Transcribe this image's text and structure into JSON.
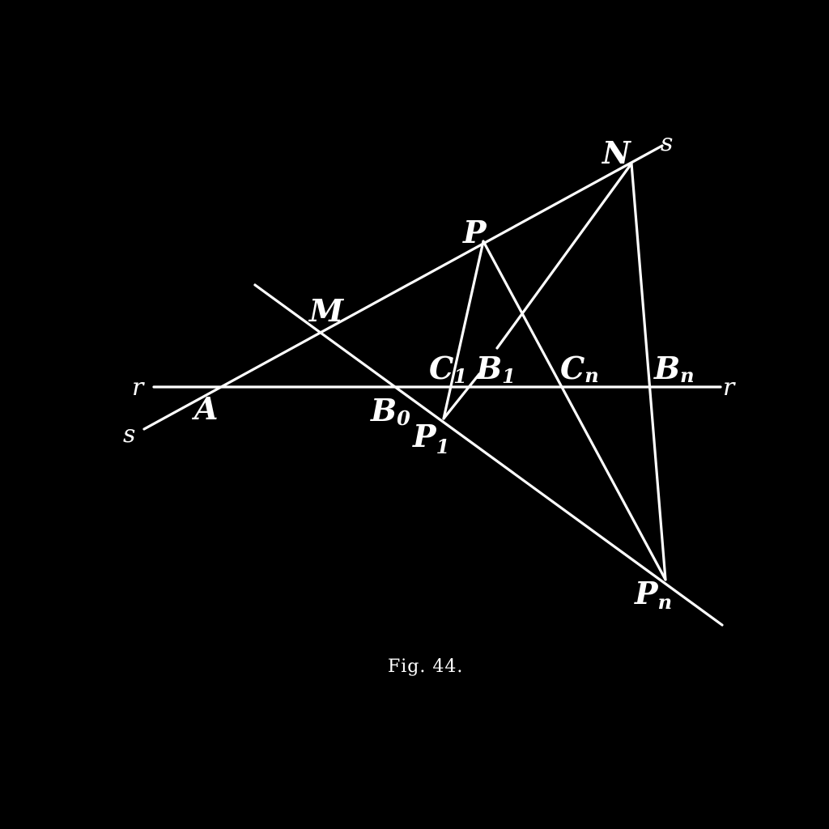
{
  "figure": {
    "caption": "Fig. 44.",
    "lines": {
      "r": "r",
      "s": "s"
    },
    "points": {
      "A": {
        "main": "A",
        "sub": ""
      },
      "M": {
        "main": "M",
        "sub": ""
      },
      "P": {
        "main": "P",
        "sub": ""
      },
      "N": {
        "main": "N",
        "sub": ""
      },
      "B0": {
        "main": "B",
        "sub": "0"
      },
      "C1": {
        "main": "C",
        "sub": "1"
      },
      "B1": {
        "main": "B",
        "sub": "1"
      },
      "Cn": {
        "main": "C",
        "sub": "n"
      },
      "Bn": {
        "main": "B",
        "sub": "n"
      },
      "P1": {
        "main": "P",
        "sub": "1"
      },
      "Pn": {
        "main": "P",
        "sub": "n"
      }
    },
    "colors": {
      "background": "#000000",
      "ink": "#ffffff"
    }
  }
}
